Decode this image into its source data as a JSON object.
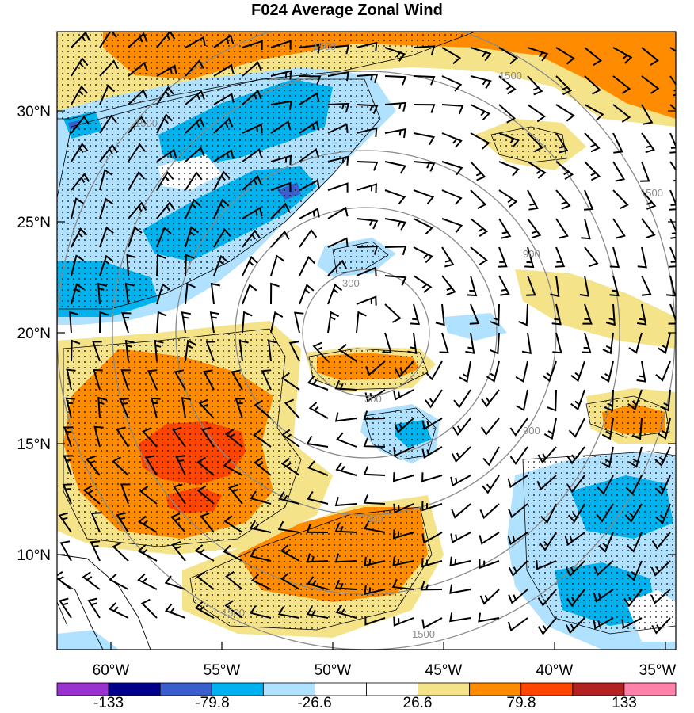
{
  "title": "F024 Average Zonal Wind",
  "lat_labels": [
    "30°N",
    "25°N",
    "20°N",
    "15°N",
    "10°N"
  ],
  "lon_labels": [
    "60°W",
    "55°W",
    "50°W",
    "45°W",
    "40°W",
    "35°W"
  ],
  "colorbar": {
    "colors": [
      "#9a32cd",
      "#00008b",
      "#3a5fcd",
      "#00b2ee",
      "#b0e2ff",
      "#ffffff",
      "#ffffff",
      "#f5e38a",
      "#ff8c00",
      "#ff4500",
      "#b22222",
      "#ff82ab"
    ],
    "labels": [
      "-133",
      "-79.8",
      "-26.6",
      "26.6",
      "79.8",
      "133"
    ]
  },
  "contour_labels": [
    "300",
    "300",
    "900",
    "900",
    "900",
    "1500",
    "1500",
    "1500",
    "1500",
    "1500",
    "1500"
  ],
  "colors": {
    "strong_positive": "#ff4500",
    "positive": "#ff8c00",
    "weak_positive": "#f5e38a",
    "weak_negative": "#b0e2ff",
    "negative": "#00b2ee",
    "strong_negative": "#3a5fcd",
    "contour": "#8a8a8a"
  }
}
